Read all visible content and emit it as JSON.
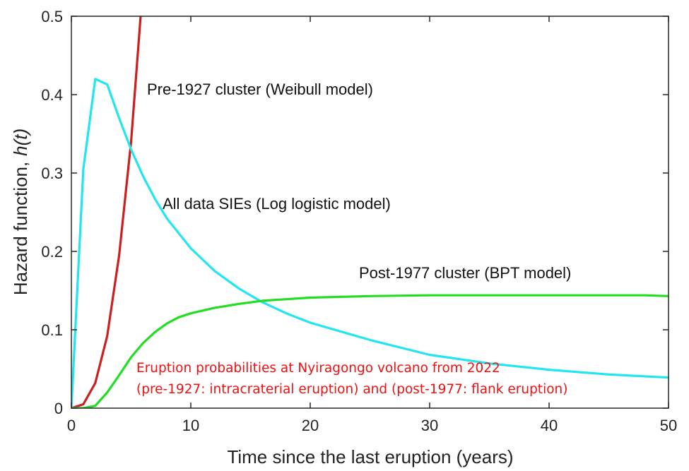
{
  "chart_data": {
    "type": "line",
    "xlabel": "Time since the last eruption (years)",
    "ylabel_main": "Hazard function,",
    "ylabel_symbol": "h(t)",
    "xlim": [
      0,
      50
    ],
    "ylim": [
      0,
      0.5
    ],
    "xticks": [
      0,
      10,
      20,
      30,
      40,
      50
    ],
    "xtick_labels": [
      "0",
      "10",
      "20",
      "30",
      "40",
      "50"
    ],
    "yticks": [
      0,
      0.1,
      0.2,
      0.3,
      0.4,
      0.5
    ],
    "ytick_labels": [
      "0",
      "0.1",
      "0.2",
      "0.3",
      "0.4",
      "0.5"
    ],
    "grid": false,
    "series": [
      {
        "name": "Pre-1927 cluster (Weibull model)",
        "color": "#cc1f1f",
        "x": [
          0,
          1,
          2,
          3,
          4,
          5,
          5.8
        ],
        "y": [
          0,
          0.005,
          0.032,
          0.092,
          0.195,
          0.34,
          0.5
        ]
      },
      {
        "name": "All data SIEs (Log logistic model)",
        "color": "#22e6ef",
        "x": [
          0,
          1,
          2,
          3,
          4,
          5,
          6,
          7,
          8,
          10,
          12,
          14,
          16,
          18,
          20,
          25,
          30,
          35,
          40,
          45,
          50
        ],
        "y": [
          0,
          0.305,
          0.42,
          0.413,
          0.37,
          0.33,
          0.296,
          0.267,
          0.242,
          0.204,
          0.175,
          0.153,
          0.135,
          0.121,
          0.109,
          0.087,
          0.068,
          0.057,
          0.049,
          0.043,
          0.039
        ]
      },
      {
        "name": "Post-1977 cluster (BPT model)",
        "color": "#22dd22",
        "x": [
          0,
          1,
          2,
          3,
          4,
          5,
          6,
          7,
          8,
          9,
          10,
          12,
          14,
          16,
          18,
          20,
          25,
          30,
          35,
          40,
          45,
          48,
          50
        ],
        "y": [
          0,
          0,
          0.003,
          0.02,
          0.042,
          0.065,
          0.083,
          0.097,
          0.108,
          0.116,
          0.121,
          0.128,
          0.133,
          0.137,
          0.139,
          0.141,
          0.143,
          0.144,
          0.144,
          0.144,
          0.144,
          0.144,
          0.143
        ]
      }
    ],
    "annotations": {
      "red_note_line1": "Eruption probabilities at Nyiragongo volcano from 2022",
      "red_note_line2": "(pre-1927: intracraterial eruption) and (post-1977: flank eruption)",
      "red_note_color": "#ee1111"
    }
  }
}
